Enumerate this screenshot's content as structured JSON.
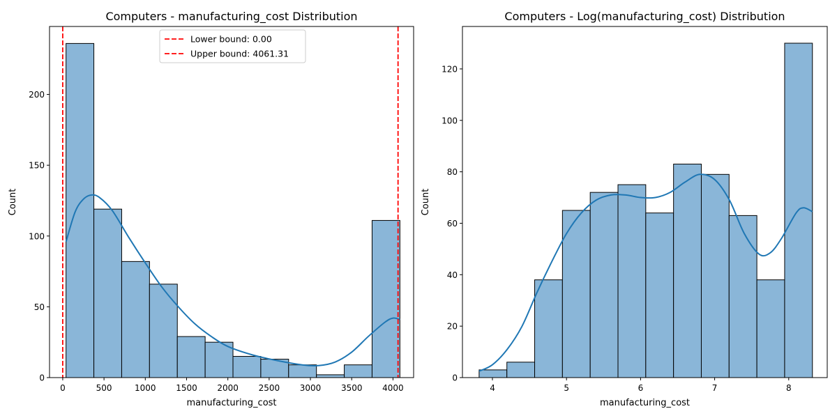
{
  "chart_data": [
    {
      "type": "histogram",
      "title": "Computers - manufacturing_cost Distribution",
      "xlabel": "manufacturing_cost",
      "ylabel": "Count",
      "xlim": [
        -160,
        4250
      ],
      "ylim": [
        0,
        248
      ],
      "xticks": [
        0,
        500,
        1000,
        1500,
        2000,
        2500,
        3000,
        3500,
        4000
      ],
      "xtick_labels": [
        "0",
        "500",
        "1000",
        "1500",
        "2000",
        "2500",
        "3000",
        "3500",
        "4000"
      ],
      "yticks": [
        0,
        50,
        100,
        150,
        200
      ],
      "ytick_labels": [
        "0",
        "50",
        "100",
        "150",
        "200"
      ],
      "bin_edges": [
        40,
        377,
        714,
        1051,
        1388,
        1725,
        2062,
        2399,
        2736,
        3073,
        3410,
        3747,
        4084
      ],
      "counts": [
        236,
        119,
        82,
        66,
        29,
        25,
        15,
        13,
        9,
        2,
        9,
        111
      ],
      "kde": {
        "x": [
          40,
          150,
          250,
          350,
          450,
          600,
          800,
          1000,
          1200,
          1400,
          1600,
          1800,
          2000,
          2300,
          2600,
          2900,
          3100,
          3300,
          3500,
          3700,
          3900,
          4000,
          4084
        ],
        "y": [
          96,
          117,
          126,
          129,
          127,
          118,
          99,
          81,
          64,
          50,
          38,
          29,
          22,
          16,
          12,
          9,
          8.5,
          11,
          18,
          29,
          39,
          42,
          41
        ]
      },
      "vlines": [
        {
          "x": 0,
          "label": "Lower bound: 0.00",
          "color": "#ff0000"
        },
        {
          "x": 4061.31,
          "label": "Upper bound: 4061.31",
          "color": "#ff0000"
        }
      ],
      "legend": "upper center",
      "bar_color": "#8ab6d8",
      "kde_color": "#1f77b4"
    },
    {
      "type": "histogram",
      "title": "Computers - Log(manufacturing_cost) Distribution",
      "xlabel": "manufacturing_cost",
      "ylabel": "Count",
      "xlim": [
        3.595,
        8.52
      ],
      "ylim": [
        0,
        136.5
      ],
      "xticks": [
        4,
        5,
        6,
        7,
        8
      ],
      "xtick_labels": [
        "4",
        "5",
        "6",
        "7",
        "8"
      ],
      "yticks": [
        0,
        20,
        40,
        60,
        80,
        100,
        120
      ],
      "ytick_labels": [
        "0",
        "20",
        "40",
        "60",
        "80",
        "100",
        "120"
      ],
      "bin_edges": [
        3.82,
        4.195,
        4.57,
        4.945,
        5.32,
        5.695,
        6.07,
        6.445,
        6.82,
        7.195,
        7.57,
        7.945,
        8.32
      ],
      "counts": [
        3,
        6,
        38,
        65,
        72,
        75,
        64,
        83,
        79,
        63,
        38,
        130
      ],
      "kde": {
        "x": [
          3.82,
          4.0,
          4.2,
          4.4,
          4.6,
          4.8,
          5.0,
          5.2,
          5.4,
          5.6,
          5.8,
          6.0,
          6.2,
          6.4,
          6.6,
          6.8,
          7.0,
          7.2,
          7.4,
          7.6,
          7.75,
          7.9,
          8.1,
          8.2,
          8.32
        ],
        "y": [
          2.5,
          5,
          11,
          20,
          33,
          45,
          56,
          64,
          69,
          71,
          71,
          70,
          70,
          72,
          76,
          79,
          77,
          69,
          56,
          48,
          48.5,
          54,
          64,
          66,
          64.5
        ]
      },
      "bar_color": "#8ab6d8",
      "kde_color": "#1f77b4"
    }
  ]
}
